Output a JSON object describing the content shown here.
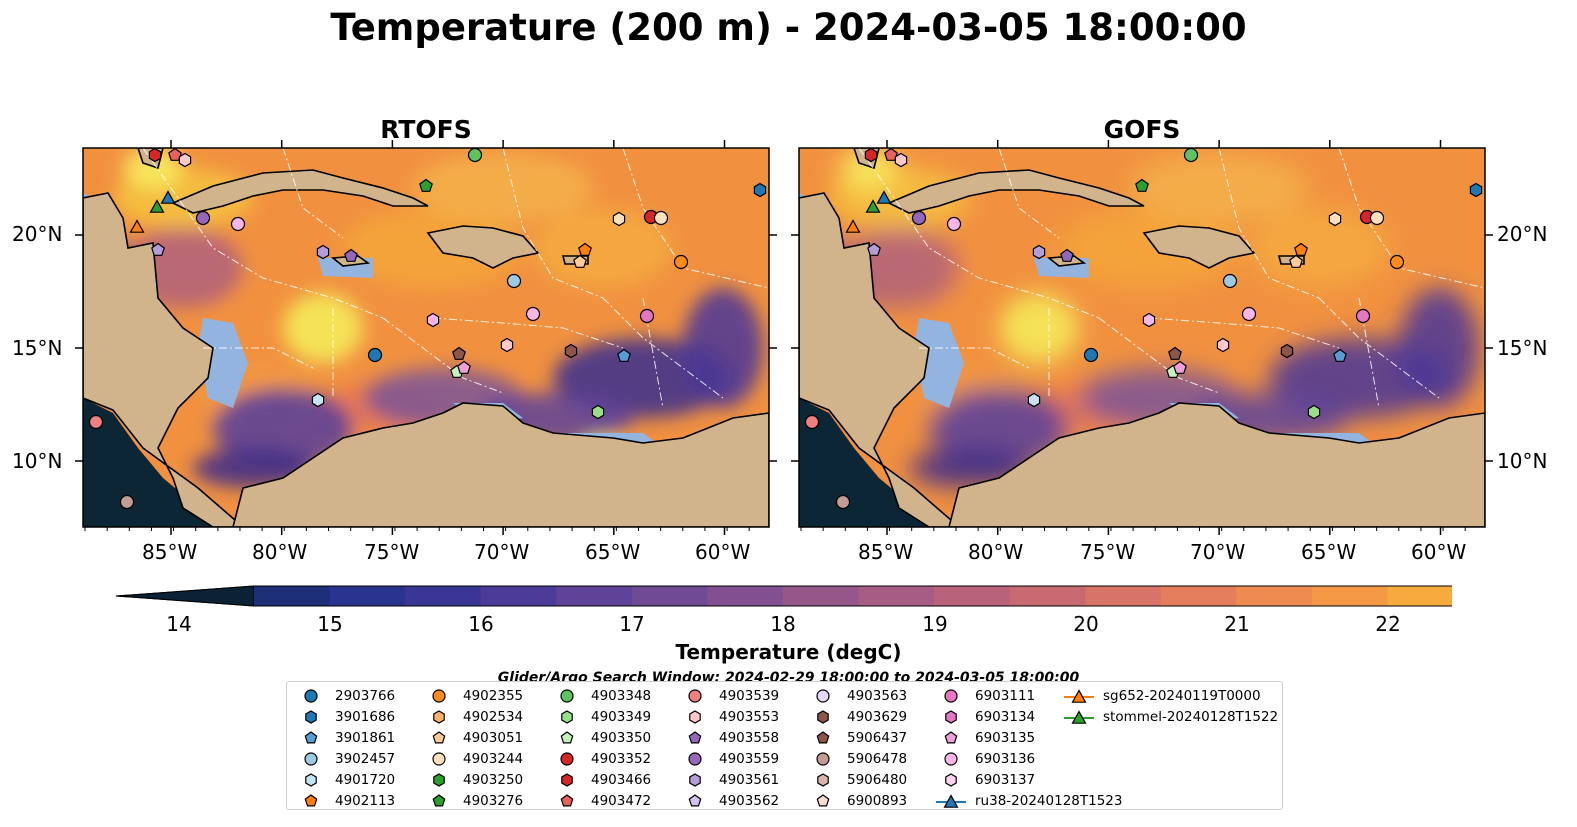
{
  "title": "Temperature (200 m) - 2024-03-05 18:00:00",
  "panels": [
    {
      "title": "RTOFS"
    },
    {
      "title": "GOFS"
    }
  ],
  "axes": {
    "lon_ticks": [
      "85°W",
      "80°W",
      "75°W",
      "70°W",
      "65°W",
      "60°W"
    ],
    "lat_ticks": [
      "20°N",
      "15°N",
      "10°N"
    ]
  },
  "colorbar": {
    "label": "Temperature (degC)",
    "ticks": [
      "14",
      "15",
      "16",
      "17",
      "18",
      "19",
      "20",
      "21",
      "22"
    ],
    "range": [
      14,
      22
    ],
    "extend": "both"
  },
  "search_window": "Glider/Argo Search Window: 2024-02-29 18:00:00 to 2024-03-05 18:00:00",
  "legend": [
    {
      "label": "2903766",
      "marker": "circle",
      "color": "#1f77b4"
    },
    {
      "label": "3901686",
      "marker": "hexagon",
      "color": "#1f77b4"
    },
    {
      "label": "3901861",
      "marker": "pentagon",
      "color": "#5b9bd5"
    },
    {
      "label": "3902457",
      "marker": "circle",
      "color": "#9ecae1"
    },
    {
      "label": "4901720",
      "marker": "hexagon",
      "color": "#c6e2f5"
    },
    {
      "label": "4902113",
      "marker": "pentagon",
      "color": "#ff7f0e"
    },
    {
      "label": "4902355",
      "marker": "circle",
      "color": "#ff8c1a"
    },
    {
      "label": "4902534",
      "marker": "hexagon",
      "color": "#ffb366"
    },
    {
      "label": "4903051",
      "marker": "pentagon",
      "color": "#ffcc99"
    },
    {
      "label": "4903244",
      "marker": "circle",
      "color": "#ffe0bd"
    },
    {
      "label": "4903250",
      "marker": "hexagon",
      "color": "#2ca02c"
    },
    {
      "label": "4903276",
      "marker": "pentagon",
      "color": "#2ca02c"
    },
    {
      "label": "4903348",
      "marker": "circle",
      "color": "#5fc15f"
    },
    {
      "label": "4903349",
      "marker": "hexagon",
      "color": "#98df8a"
    },
    {
      "label": "4903350",
      "marker": "pentagon",
      "color": "#c7f0bf"
    },
    {
      "label": "4903352",
      "marker": "circle",
      "color": "#d62728"
    },
    {
      "label": "4903466",
      "marker": "hexagon",
      "color": "#d62728"
    },
    {
      "label": "4903472",
      "marker": "pentagon",
      "color": "#e8625c"
    },
    {
      "label": "4903539",
      "marker": "circle",
      "color": "#f08080"
    },
    {
      "label": "4903553",
      "marker": "hexagon",
      "color": "#ffc9c9"
    },
    {
      "label": "4903558",
      "marker": "pentagon",
      "color": "#9467bd"
    },
    {
      "label": "4903559",
      "marker": "circle",
      "color": "#9467bd"
    },
    {
      "label": "4903561",
      "marker": "hexagon",
      "color": "#b39ddb"
    },
    {
      "label": "4903562",
      "marker": "pentagon",
      "color": "#d4c2ee"
    },
    {
      "label": "4903563",
      "marker": "circle",
      "color": "#e5d9f7"
    },
    {
      "label": "4903629",
      "marker": "hexagon",
      "color": "#8c564b"
    },
    {
      "label": "5906437",
      "marker": "pentagon",
      "color": "#8c564b"
    },
    {
      "label": "5906478",
      "marker": "circle",
      "color": "#c49c94"
    },
    {
      "label": "5906480",
      "marker": "hexagon",
      "color": "#dbb5a8"
    },
    {
      "label": "6900893",
      "marker": "pentagon",
      "color": "#f7dcd0"
    },
    {
      "label": "6903111",
      "marker": "circle",
      "color": "#e377c2"
    },
    {
      "label": "6903134",
      "marker": "hexagon",
      "color": "#e377c2"
    },
    {
      "label": "6903135",
      "marker": "pentagon",
      "color": "#f0a0d8"
    },
    {
      "label": "6903136",
      "marker": "circle",
      "color": "#f7b6e6"
    },
    {
      "label": "6903137",
      "marker": "hexagon",
      "color": "#fbd3f0"
    },
    {
      "label": "ru38-20240128T1523",
      "marker": "triangle-line",
      "color": "#1f77b4"
    },
    {
      "label": "sg652-20240119T0000",
      "marker": "triangle-line",
      "color": "#ff7f0e"
    },
    {
      "label": "stommel-20240128T1522",
      "marker": "triangle-line",
      "color": "#2ca02c"
    }
  ],
  "colors": {
    "ocean_cold": "#3b2d8f",
    "ocean_warm": "#f59a3a",
    "land": "#d2b48c",
    "shelf": "#94b4e0",
    "deep_pacific": "#0a2233"
  }
}
